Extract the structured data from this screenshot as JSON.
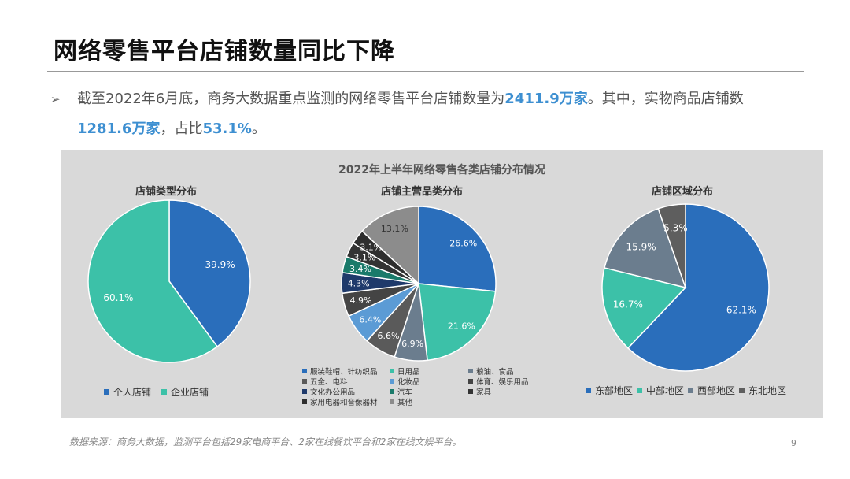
{
  "slide": {
    "title": "网络零售平台店铺数量同比下降",
    "bullet_arrow": "➢",
    "bullet_parts": [
      {
        "text": "截至2022年6月底，商务大数据重点监测的网络零售平台店铺数量为",
        "hl": false
      },
      {
        "text": "2411.9万家",
        "hl": true
      },
      {
        "text": "。其中，实物商品店铺数",
        "hl": false
      },
      {
        "text": "1281.6万家",
        "hl": true
      },
      {
        "text": "，占比",
        "hl": false
      },
      {
        "text": "53.1%",
        "hl": true
      },
      {
        "text": "。",
        "hl": false
      }
    ],
    "source": "数据来源：商务大数据，监测平台包括29家电商平台、2家在线餐饮平台和2家在线文娱平台。",
    "page_number": "9",
    "colors": {
      "highlight": "#3d8fd1",
      "panel_bg": "#d9d9d9"
    }
  },
  "chart_data": [
    {
      "type": "pie",
      "overall_title": "2022年上半年网络零售各类店铺分布情况",
      "title": "店铺类型分布",
      "start_angle_deg": 0,
      "categories": [
        "个人店铺",
        "企业店铺"
      ],
      "values": [
        39.9,
        60.1
      ],
      "labels": [
        "39.9%",
        "60.1%"
      ],
      "colors": [
        "#2a6ebb",
        "#3cc1a8"
      ],
      "legend_position": "bottom"
    },
    {
      "type": "pie",
      "title": "店铺主营品类分布",
      "start_angle_deg": 0,
      "categories": [
        "服装鞋帽、针纺织品",
        "日用品",
        "粮油、食品",
        "五金、电料",
        "化妆品",
        "体育、娱乐用品",
        "文化办公用品",
        "汽车",
        "家具",
        "家用电器和音像器材",
        "其他"
      ],
      "values": [
        26.6,
        21.6,
        6.9,
        6.6,
        6.4,
        4.9,
        4.3,
        3.4,
        3.1,
        3.1,
        13.1
      ],
      "labels": [
        "26.6%",
        "21.6%",
        "6.9%",
        "6.6%",
        "6.4%",
        "4.9%",
        "4.3%",
        "3.4%",
        "3.1%",
        "3.1%",
        "13.1%"
      ],
      "colors": [
        "#2a6ebb",
        "#3cc1a8",
        "#6b7d8e",
        "#5a5a5a",
        "#5b9bd5",
        "#444444",
        "#1f3a6b",
        "#1a7a6a",
        "#333333",
        "#2e2e2e",
        "#8c8c8c"
      ],
      "legend_position": "bottom"
    },
    {
      "type": "pie",
      "title": "店铺区域分布",
      "start_angle_deg": 0,
      "categories": [
        "东部地区",
        "中部地区",
        "西部地区",
        "东北地区"
      ],
      "values": [
        62.1,
        16.7,
        15.9,
        5.3
      ],
      "labels": [
        "62.1%",
        "16.7%",
        "15.9%",
        "5.3%"
      ],
      "colors": [
        "#2a6ebb",
        "#3cc1a8",
        "#6b7d8e",
        "#5e5e5e"
      ],
      "legend_position": "bottom"
    }
  ]
}
